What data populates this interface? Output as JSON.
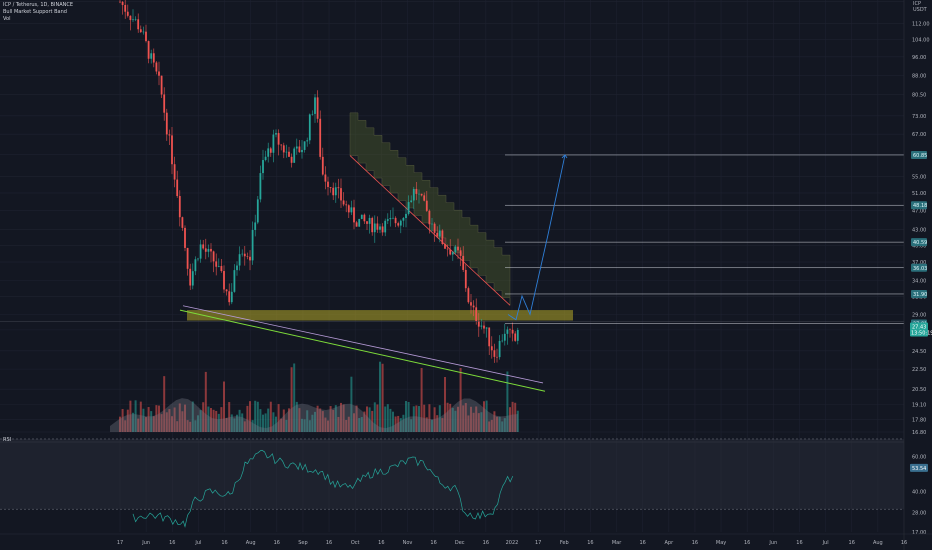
{
  "legend": {
    "symbol": "ICP / Tetherus, 1D, BINANCE",
    "indicator": "Bull Market Support Band",
    "volume": "Vol"
  },
  "rsi_label": "RSI",
  "colors": {
    "background": "#131722",
    "up": "#26a69a",
    "down": "#ef5350",
    "grid": "#1e2230",
    "support_zone": "#b5a727",
    "trendline_green": "#7ddc3a",
    "trendline_purple": "#b59ad6",
    "projection": "#2f7fd8",
    "rsi_line": "#26a69a"
  },
  "chart_data": [
    {
      "type": "candlestick",
      "ylim": [
        16.8,
        125
      ],
      "scale": "log",
      "price_ticks": [
        "124.00",
        "112.00",
        "104.00",
        "96.00",
        "88.00",
        "80.50",
        "73.00",
        "67.00",
        "61.00",
        "55.00",
        "51.00",
        "47.00",
        "43.00",
        "40.00",
        "37.00",
        "34.00",
        "31.50",
        "29.00",
        "27.00",
        "24.50",
        "22.50",
        "20.50",
        "19.10",
        "17.80",
        "16.80"
      ],
      "price_tick_values": [
        124,
        112,
        104,
        96,
        88,
        80.5,
        73,
        67,
        61,
        55,
        51,
        47,
        43,
        40,
        37,
        34,
        31.5,
        29,
        27,
        24.5,
        22.5,
        20.5,
        19.1,
        17.8,
        16.8
      ],
      "top_right_labels": [
        "ICP",
        "USDT"
      ],
      "time_labels": [
        "17",
        "Jun",
        "16",
        "Jul",
        "16",
        "Aug",
        "16",
        "Sep",
        "16",
        "Oct",
        "16",
        "Nov",
        "16",
        "Dec",
        "16",
        "2022",
        "17",
        "Feb",
        "16",
        "Mar",
        "16",
        "Apr",
        "16",
        "May",
        "16",
        "Jun",
        "16",
        "Jul",
        "16",
        "Aug",
        "16"
      ],
      "current_price": "27.43",
      "countdown": "13:50:19",
      "level_badges": [
        {
          "label": "60.85",
          "value": 60.85
        },
        {
          "label": "48.18",
          "value": 48.18
        },
        {
          "label": "40.59",
          "value": 40.59
        },
        {
          "label": "36.03",
          "value": 36.03
        },
        {
          "label": "31.90",
          "value": 31.9
        },
        {
          "label": "27.81",
          "value": 27.81
        }
      ],
      "support_zone": [
        28.2,
        29.6
      ],
      "annotations": [
        "descending support trendline",
        "projected breakout path to 60.85"
      ]
    },
    {
      "type": "line",
      "name": "RSI",
      "ylim": [
        17,
        66
      ],
      "ticks": [
        "60.00",
        "40.00",
        "28.00",
        "17.00"
      ],
      "tick_values": [
        60,
        40,
        28,
        17
      ],
      "current_value": "53.54",
      "bands": [
        30,
        70
      ]
    }
  ]
}
